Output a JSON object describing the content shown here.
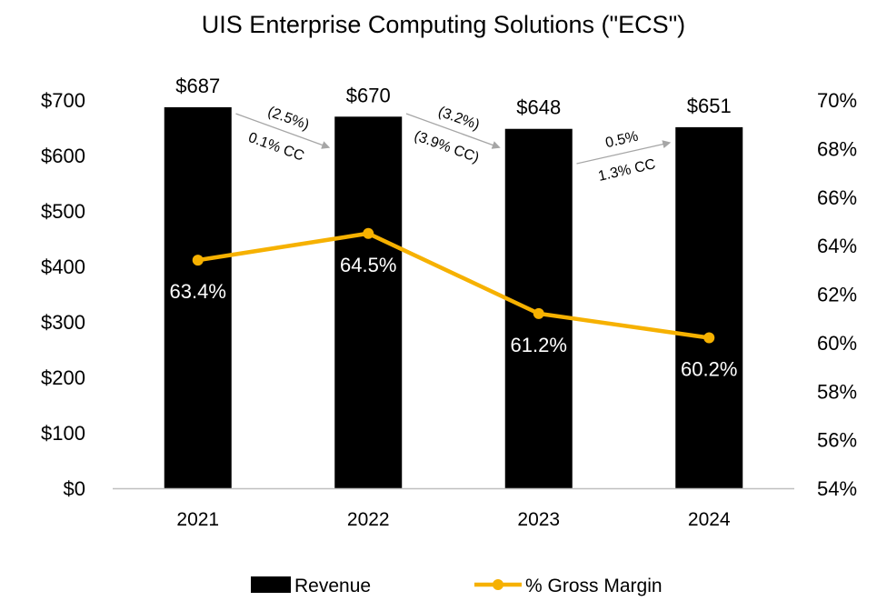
{
  "chart_data": {
    "type": "bar",
    "title": "UIS Enterprise Computing Solutions (\"ECS\")",
    "categories": [
      "2021",
      "2022",
      "2023",
      "2024"
    ],
    "series": [
      {
        "name": "Revenue",
        "type": "bar",
        "axis": "left",
        "values": [
          687,
          670,
          648,
          651
        ],
        "labels": [
          "$687",
          "$670",
          "$648",
          "$651"
        ],
        "color": "#000000"
      },
      {
        "name": "% Gross Margin",
        "type": "line",
        "axis": "right",
        "values": [
          63.4,
          64.5,
          61.2,
          60.2
        ],
        "labels": [
          "63.4%",
          "64.5%",
          "61.2%",
          "60.2%"
        ],
        "color": "#F6B100"
      }
    ],
    "y_left": {
      "ylim": [
        0,
        700
      ],
      "ticks": [
        "$0",
        "$100",
        "$200",
        "$300",
        "$400",
        "$500",
        "$600",
        "$700"
      ]
    },
    "y_right": {
      "ylim": [
        54,
        70
      ],
      "ticks": [
        "54%",
        "56%",
        "58%",
        "60%",
        "62%",
        "64%",
        "66%",
        "68%",
        "70%"
      ]
    },
    "change_annotations": [
      {
        "from": "2021",
        "to": "2022",
        "direction": "down",
        "top": "(2.5%)",
        "bottom": "0.1% CC"
      },
      {
        "from": "2022",
        "to": "2023",
        "direction": "down",
        "top": "(3.2%)",
        "bottom": "(3.9% CC)"
      },
      {
        "from": "2023",
        "to": "2024",
        "direction": "up",
        "top": "0.5%",
        "bottom": "1.3% CC"
      }
    ],
    "legend": {
      "position": "bottom",
      "items": [
        "Revenue",
        "% Gross Margin"
      ]
    },
    "grid": false
  }
}
